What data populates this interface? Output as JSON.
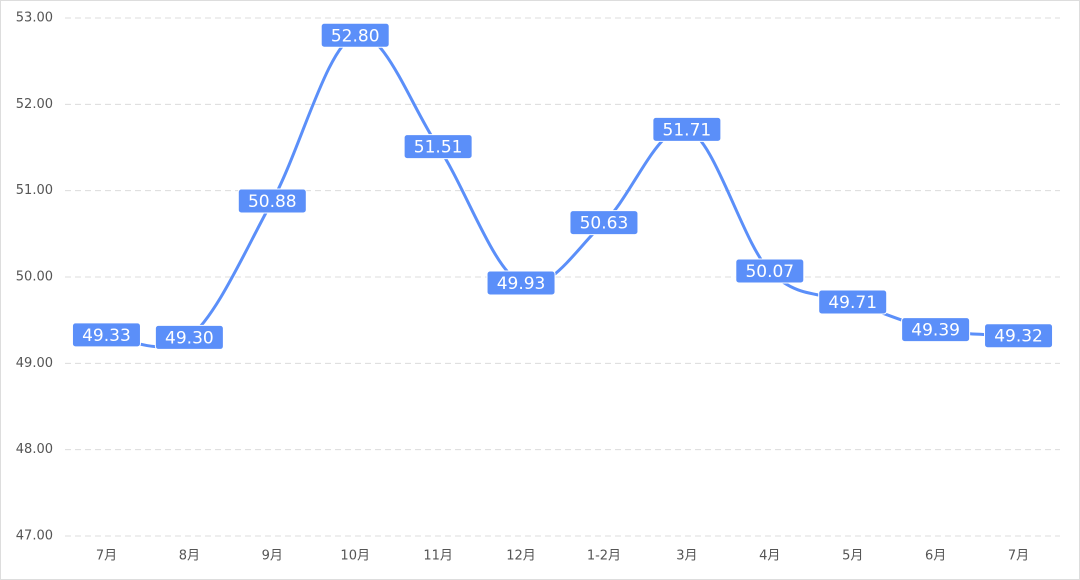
{
  "chart_data": {
    "type": "line",
    "categories": [
      "7月",
      "8月",
      "9月",
      "10月",
      "11月",
      "12月",
      "1-2月",
      "3月",
      "4月",
      "5月",
      "6月",
      "7月"
    ],
    "values": [
      49.33,
      49.3,
      50.88,
      52.8,
      51.51,
      49.93,
      50.63,
      51.71,
      50.07,
      49.71,
      49.39,
      49.32
    ],
    "value_labels": [
      "49.33",
      "49.30",
      "50.88",
      "52.80",
      "51.51",
      "49.93",
      "50.63",
      "51.71",
      "50.07",
      "49.71",
      "49.39",
      "49.32"
    ],
    "color": "#5b8ff9",
    "ylim": [
      47,
      53
    ],
    "yticks": [
      {
        "value": 47,
        "label": "47.00"
      },
      {
        "value": 48,
        "label": "48.00"
      },
      {
        "value": 49,
        "label": "49.00"
      },
      {
        "value": 50,
        "label": "50.00"
      },
      {
        "value": 51,
        "label": "51.00"
      },
      {
        "value": 52,
        "label": "52.00"
      },
      {
        "value": 53,
        "label": "53.00"
      }
    ],
    "grid": true
  }
}
